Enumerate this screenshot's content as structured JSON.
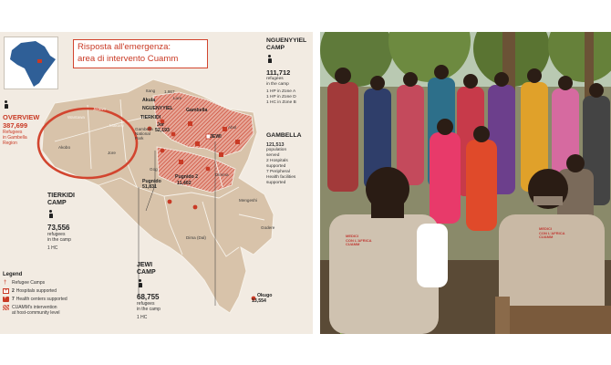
{
  "map": {
    "title_line1": "Risposta all'emergenza:",
    "title_line2": "area di intervento Cuamm",
    "overview": {
      "label": "OVERVIEW",
      "value": "387,699",
      "caption_line1": "Refugees",
      "caption_line2": "in Gambella",
      "caption_line3": "Region"
    },
    "nguenyyiel": {
      "name_line1": "NGUENYYIEL",
      "name_line2": "CAMP",
      "value": "111,712",
      "caption_line1": "refugees",
      "caption_line2": "in the camp",
      "items": [
        "1 HP in Zone A",
        "1 HP in Zone D",
        "1 HC in Zone B"
      ]
    },
    "gambella": {
      "name": "GAMBELLA",
      "value": "121,513",
      "items": [
        "population",
        "served",
        "2 Hospitals",
        "supported",
        "7 Peripheral",
        "Health facilities",
        "supported"
      ]
    },
    "tierkidi": {
      "name_line1": "TIERKIDI",
      "name_line2": "CAMP",
      "value": "73,556",
      "caption_line1": "refugees",
      "caption_line2": "in the camp",
      "hc": "1 HC"
    },
    "jewi": {
      "name_line1": "JEWI",
      "name_line2": "CAMP",
      "value": "68,755",
      "caption_line1": "refugees",
      "caption_line2": "in the camp",
      "hc": "1 HC"
    },
    "places": {
      "akobo": "Akobo",
      "wantawa": "Wantawa",
      "jikawo": "Jikawo",
      "makuey": "Makuey",
      "lare": "Lare",
      "itang": "Itang",
      "akula": "Akula",
      "akula_num": "1,867",
      "gambella_town": "Gambella",
      "gambella_park_line1": "Gambella",
      "gambella_park_line2": "National",
      "gambella_park_line3": "Park",
      "tierkidi_small": "TIERKIDI",
      "jor": "Jor",
      "jor_num": "52,193",
      "jewi_small": "JEWI",
      "gog": "Gog",
      "pugnido": "Pugnido",
      "pugnido_num": "51,831",
      "pugnido2": "Pugnido 2",
      "pugnido2_num": "11,402",
      "abol": "Abol",
      "dima": "Dima (Dal)",
      "mengeshi": "Mengeshi",
      "godere": "Godere",
      "nguenyyiel_small": "NGUENYYIEL",
      "okugo": "Okugo",
      "okugo_num": "13,554",
      "jore": "Jore",
      "dimma": "Dimma"
    },
    "legend": {
      "heading": "Legend",
      "camps": "Refugee Camps",
      "hospitals_count": "2",
      "hospitals": "Hospitals supported",
      "hc_count": "7",
      "hc": "Health centers supported",
      "intervention_line1": "CUAMM's intervention",
      "intervention_line2": "at host-community level"
    }
  },
  "photo": {
    "vest_text_line1": "MEDICI",
    "vest_text_line2": "CON L'AFRICA",
    "vest_text_line3": "CUAMM"
  },
  "colors": {
    "map_background": "#f2ebe2",
    "region_fill": "#d8c3aa",
    "accent_red": "#c93a25",
    "hatch_pink": "#e9b3a6"
  }
}
